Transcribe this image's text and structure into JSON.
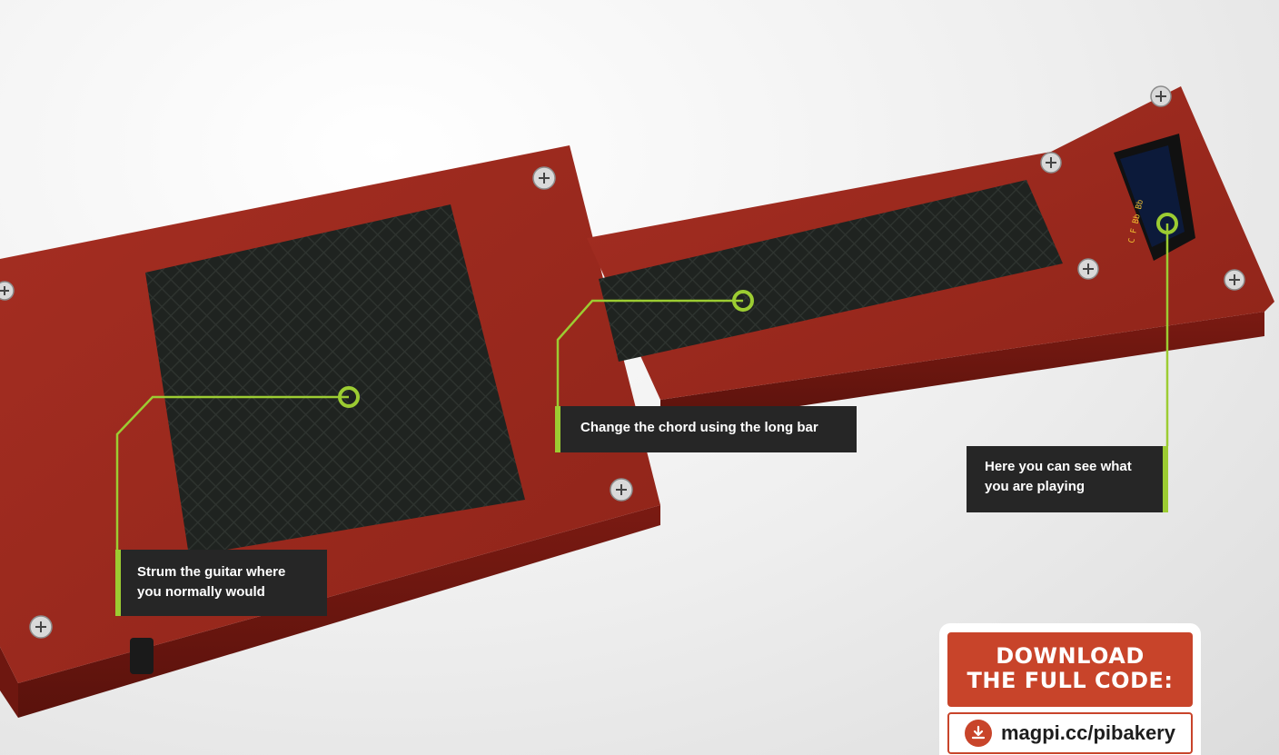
{
  "callouts": {
    "strum": [
      "Strum the guitar where",
      "you normally would"
    ],
    "chord": [
      "Change the chord using the long bar"
    ],
    "display": [
      "Here you can see what",
      "you are playing"
    ]
  },
  "download": {
    "heading": [
      "DOWNLOAD",
      "THE FULL CODE:"
    ],
    "url": "magpi.cc/pibakery",
    "icon": "download-icon"
  },
  "colors": {
    "wood": "#9c2a1e",
    "pad": "#202520",
    "accent": "#9ccc32",
    "badge": "#c8442a",
    "screen_text": "#f0c030"
  },
  "oled_screen": [
    "C  F  Bb  Bb"
  ]
}
